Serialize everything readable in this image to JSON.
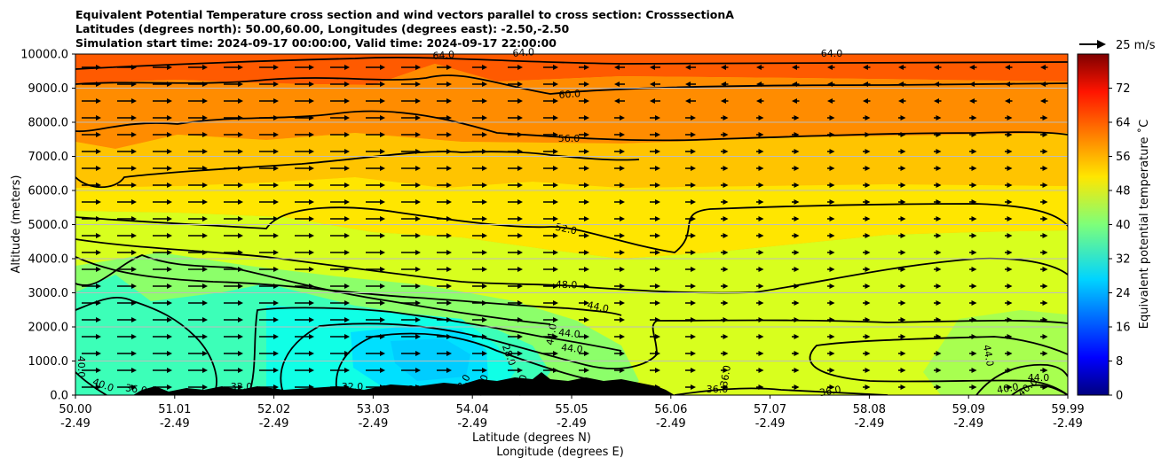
{
  "chart_data": {
    "type": "heatmap",
    "title_lines": [
      "Equivalent Potential Temperature cross section and wind vectors parallel to cross section: CrosssectionA",
      "Latitudes (degrees north): 50.00,60.00, Longitudes (degrees east): -2.50,-2.50",
      "Simulation start time: 2024-09-17 00:00:00, Valid time: 2024-09-17 22:00:00"
    ],
    "ylabel": "Altitude (meters)",
    "xlabel": "Latitude (degrees N)",
    "xlabel2": "Longitude (degrees E)",
    "ylim": [
      0,
      10000
    ],
    "y_ticks": [
      "0.0",
      "1000.0",
      "2000.0",
      "3000.0",
      "4000.0",
      "5000.0",
      "6000.0",
      "7000.0",
      "8000.0",
      "9000.0",
      "10000.0"
    ],
    "x_ticks": [
      {
        "lat": "50.00",
        "lon": "-2.49"
      },
      {
        "lat": "51.01",
        "lon": "-2.49"
      },
      {
        "lat": "52.02",
        "lon": "-2.49"
      },
      {
        "lat": "53.03",
        "lon": "-2.49"
      },
      {
        "lat": "54.04",
        "lon": "-2.49"
      },
      {
        "lat": "55.05",
        "lon": "-2.49"
      },
      {
        "lat": "56.06",
        "lon": "-2.49"
      },
      {
        "lat": "57.07",
        "lon": "-2.49"
      },
      {
        "lat": "58.08",
        "lon": "-2.49"
      },
      {
        "lat": "59.09",
        "lon": "-2.49"
      },
      {
        "lat": "59.99",
        "lon": "-2.49"
      }
    ],
    "horizontal_grid": true,
    "colorbar": {
      "label": "Equivalent potential temperature ˚C",
      "range": [
        0,
        80
      ],
      "ticks": [
        "0",
        "8",
        "16",
        "24",
        "32",
        "40",
        "48",
        "56",
        "64",
        "72"
      ],
      "colormap": "jet"
    },
    "wind_key": {
      "label": "25 m/s"
    },
    "contour_labels": [
      "64.0",
      "64.0",
      "64.0",
      "60.0",
      "56.0",
      "52.0",
      "48.0",
      "44.0",
      "44.0",
      "44.0",
      "44.0",
      "44.0",
      "44.0",
      "40.0",
      "40.0",
      "40.0",
      "40.0",
      "36.0",
      "36.0",
      "36.0",
      "36.0",
      "32.0",
      "32.0",
      "28.0",
      "28.0",
      "28.0",
      "28.0",
      "28.0",
      "28.0",
      "28.0"
    ],
    "contour_levels": [
      28,
      32,
      36,
      40,
      44,
      48,
      52,
      56,
      60,
      64
    ]
  }
}
